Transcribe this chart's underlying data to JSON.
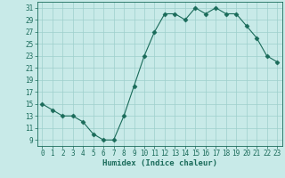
{
  "x": [
    0,
    1,
    2,
    3,
    4,
    5,
    6,
    7,
    8,
    9,
    10,
    11,
    12,
    13,
    14,
    15,
    16,
    17,
    18,
    19,
    20,
    21,
    22,
    23
  ],
  "y": [
    15,
    14,
    13,
    13,
    12,
    10,
    9,
    9,
    13,
    18,
    23,
    27,
    30,
    30,
    29,
    31,
    30,
    31,
    30,
    30,
    28,
    26,
    23,
    22
  ],
  "line_color": "#1a6b5a",
  "marker": "D",
  "marker_size": 2.5,
  "bg_color": "#c8eae8",
  "grid_color": "#9ecfcc",
  "xlabel": "Humidex (Indice chaleur)",
  "ylim": [
    8,
    32
  ],
  "yticks": [
    9,
    11,
    13,
    15,
    17,
    19,
    21,
    23,
    25,
    27,
    29,
    31
  ],
  "xlim": [
    -0.5,
    23.5
  ],
  "xticks": [
    0,
    1,
    2,
    3,
    4,
    5,
    6,
    7,
    8,
    9,
    10,
    11,
    12,
    13,
    14,
    15,
    16,
    17,
    18,
    19,
    20,
    21,
    22,
    23
  ],
  "xlabel_fontsize": 6.5,
  "tick_fontsize": 5.5
}
